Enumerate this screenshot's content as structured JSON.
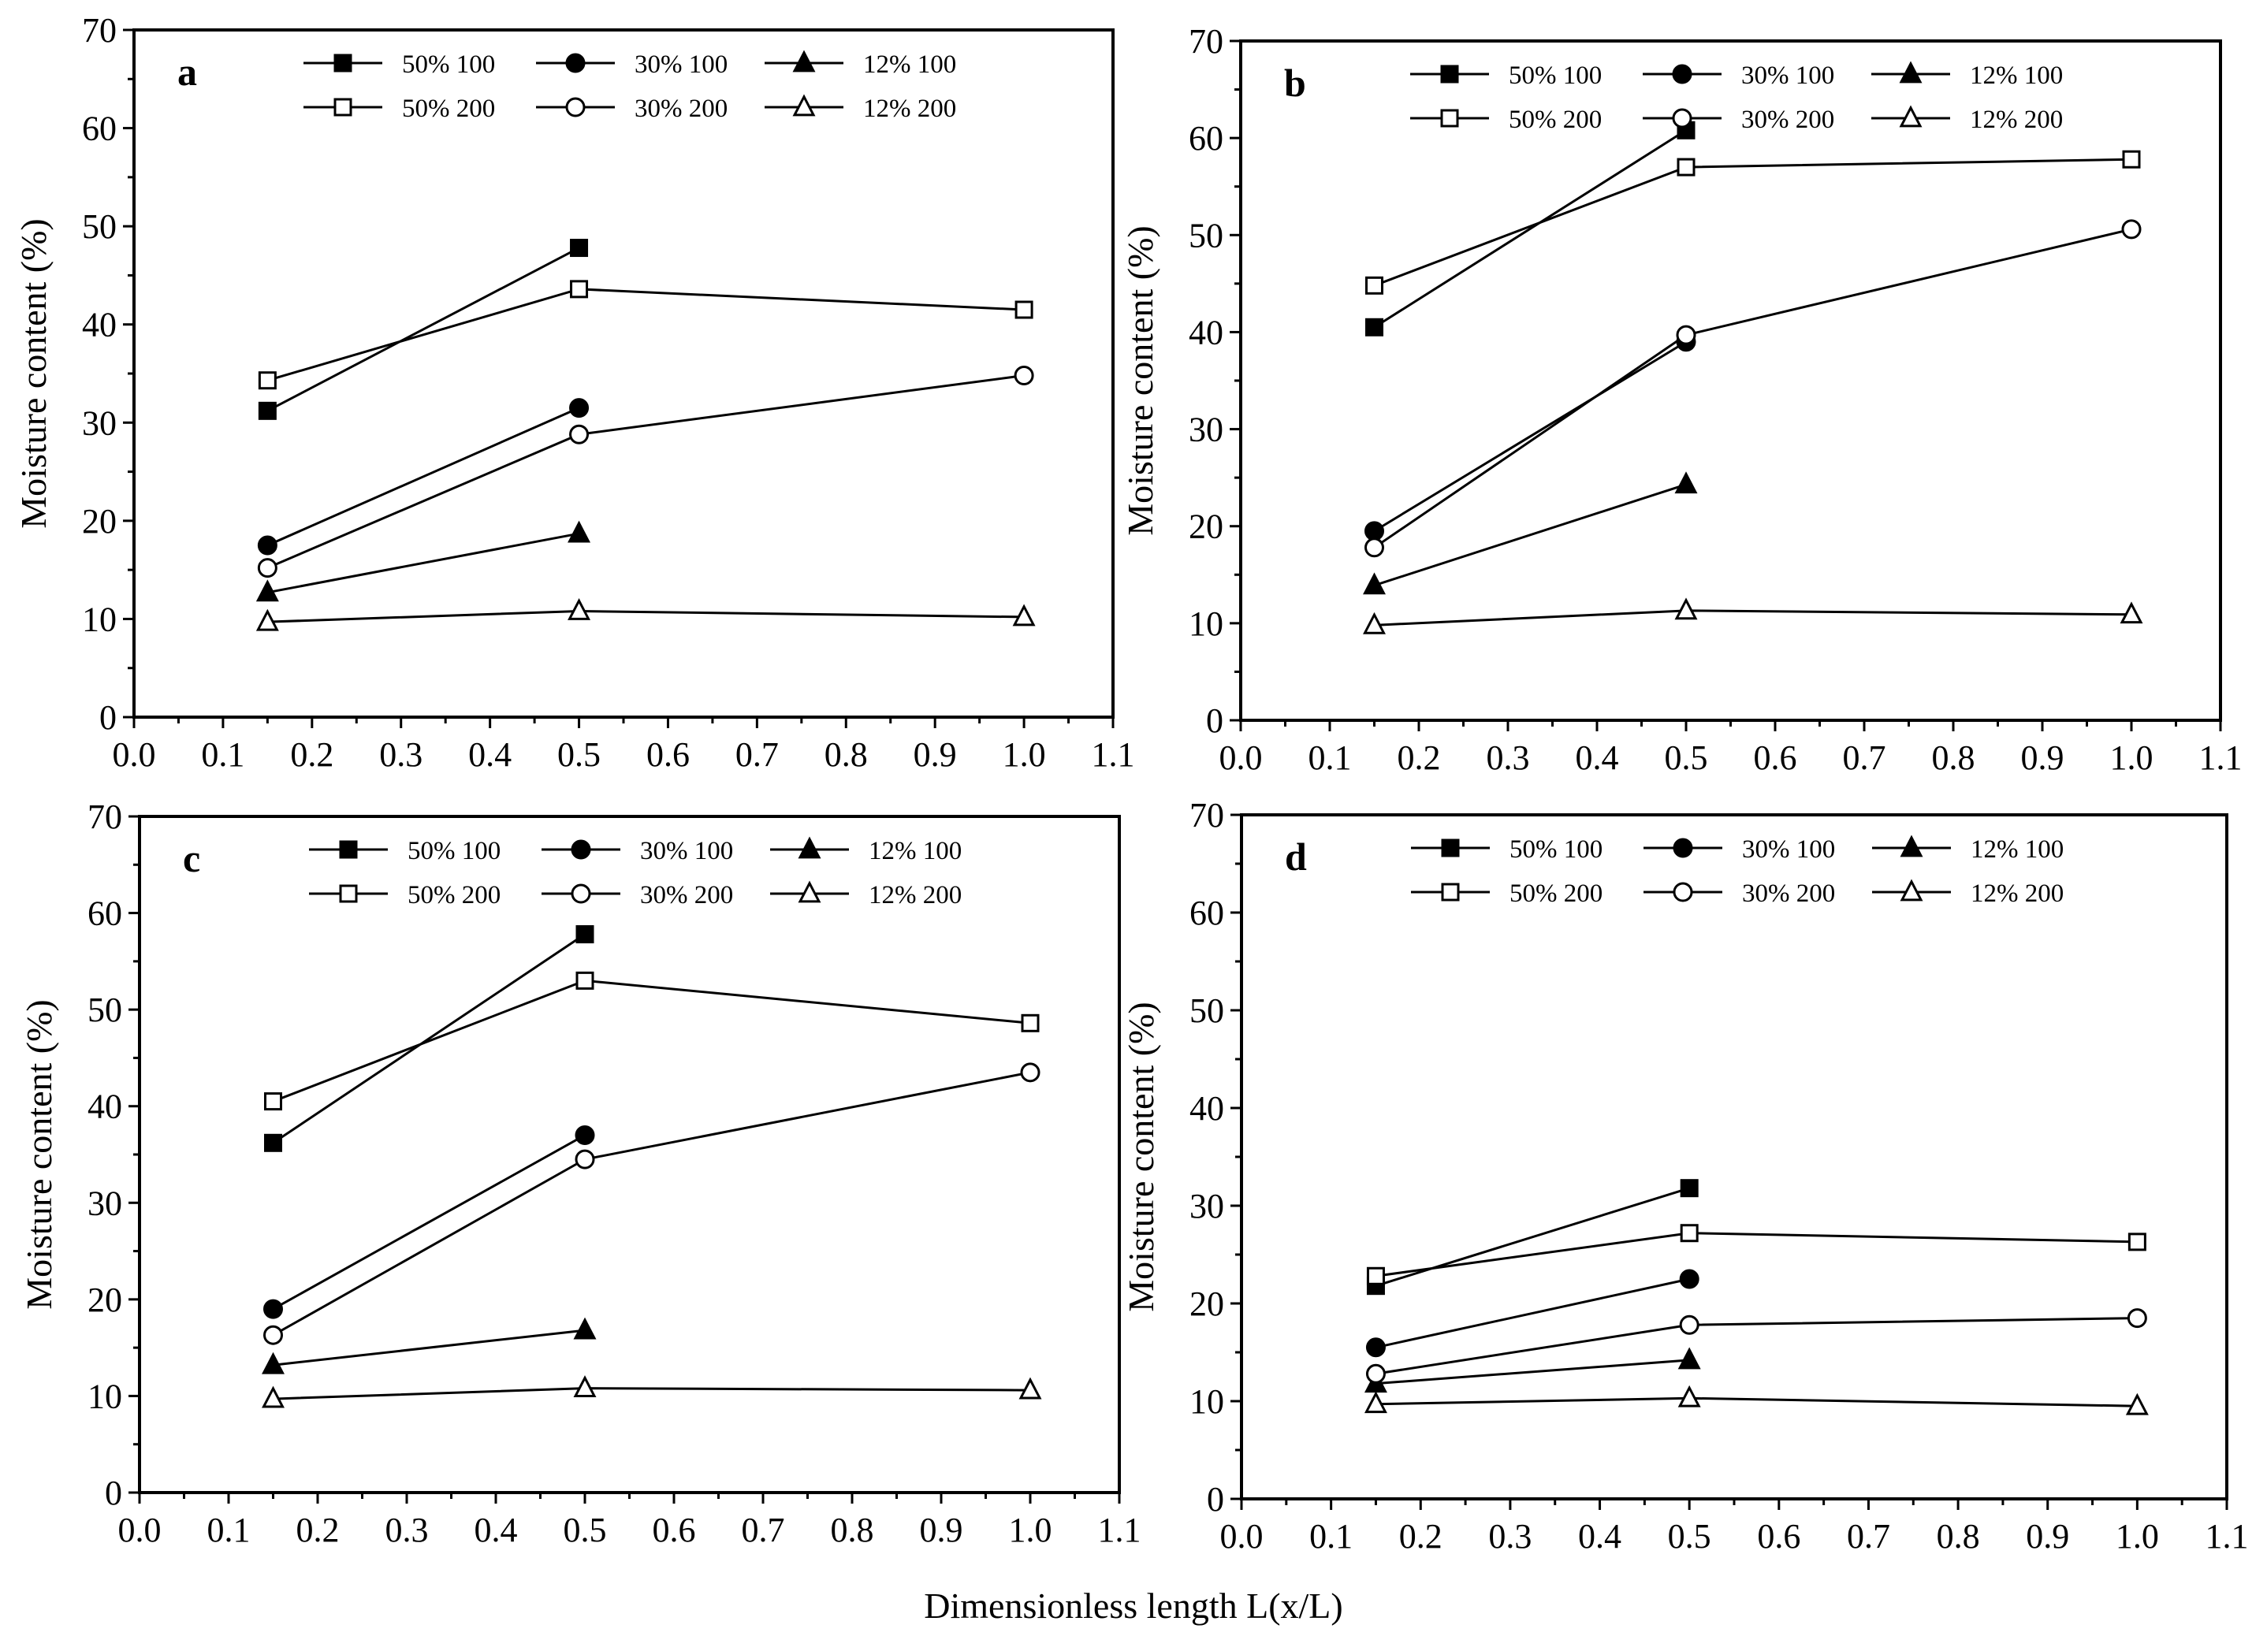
{
  "figure": {
    "xlabel": "Dimensionless length L(x/L)",
    "colors": {
      "line": "#000000",
      "fill": "#000000",
      "background": "#ffffff"
    }
  },
  "chart_data": [
    {
      "type": "line",
      "panel_label": "a",
      "ylabel": "Moisture content (%)",
      "xlim": [
        0.0,
        1.1
      ],
      "ylim": [
        0,
        70
      ],
      "xticks": [
        "0.0",
        "0.1",
        "0.2",
        "0.3",
        "0.4",
        "0.5",
        "0.6",
        "0.7",
        "0.8",
        "0.9",
        "1.0",
        "1.1"
      ],
      "yticks": [
        "0",
        "10",
        "20",
        "30",
        "40",
        "50",
        "60",
        "70"
      ],
      "legend": "top",
      "series": [
        {
          "name": "50% 100",
          "marker": "square-filled",
          "x": [
            0.15,
            0.5
          ],
          "y": [
            31.2,
            47.8
          ]
        },
        {
          "name": "30% 100",
          "marker": "circle-filled",
          "x": [
            0.15,
            0.5
          ],
          "y": [
            17.5,
            31.5
          ]
        },
        {
          "name": "12% 100",
          "marker": "triangle-filled",
          "x": [
            0.15,
            0.5
          ],
          "y": [
            12.7,
            18.7
          ]
        },
        {
          "name": "50% 200",
          "marker": "square-open",
          "x": [
            0.15,
            0.5,
            1.0
          ],
          "y": [
            34.3,
            43.6,
            41.5
          ]
        },
        {
          "name": "30% 200",
          "marker": "circle-open",
          "x": [
            0.15,
            0.5,
            1.0
          ],
          "y": [
            15.2,
            28.8,
            34.8
          ]
        },
        {
          "name": "12% 200",
          "marker": "triangle-open",
          "x": [
            0.15,
            0.5,
            1.0
          ],
          "y": [
            9.7,
            10.8,
            10.2
          ]
        }
      ]
    },
    {
      "type": "line",
      "panel_label": "b",
      "ylabel": "Moisture content (%)",
      "xlim": [
        0.0,
        1.1
      ],
      "ylim": [
        0,
        70
      ],
      "xticks": [
        "0.0",
        "0.1",
        "0.2",
        "0.3",
        "0.4",
        "0.5",
        "0.6",
        "0.7",
        "0.8",
        "0.9",
        "1.0",
        "1.1"
      ],
      "yticks": [
        "0",
        "10",
        "20",
        "30",
        "40",
        "50",
        "60",
        "70"
      ],
      "legend": "top",
      "series": [
        {
          "name": "50% 100",
          "marker": "square-filled",
          "x": [
            0.15,
            0.5
          ],
          "y": [
            40.5,
            60.8
          ]
        },
        {
          "name": "30% 100",
          "marker": "circle-filled",
          "x": [
            0.15,
            0.5
          ],
          "y": [
            19.5,
            39.0
          ]
        },
        {
          "name": "12% 100",
          "marker": "triangle-filled",
          "x": [
            0.15,
            0.5
          ],
          "y": [
            13.9,
            24.3
          ]
        },
        {
          "name": "50% 200",
          "marker": "square-open",
          "x": [
            0.15,
            0.5,
            1.0
          ],
          "y": [
            44.8,
            57.0,
            57.8
          ]
        },
        {
          "name": "30% 200",
          "marker": "circle-open",
          "x": [
            0.15,
            0.5,
            1.0
          ],
          "y": [
            17.8,
            39.7,
            50.6
          ]
        },
        {
          "name": "12% 200",
          "marker": "triangle-open",
          "x": [
            0.15,
            0.5,
            1.0
          ],
          "y": [
            9.8,
            11.3,
            10.9
          ]
        }
      ]
    },
    {
      "type": "line",
      "panel_label": "c",
      "ylabel": "Moisture content (%)",
      "xlim": [
        0.0,
        1.1
      ],
      "ylim": [
        0,
        70
      ],
      "xticks": [
        "0.0",
        "0.1",
        "0.2",
        "0.3",
        "0.4",
        "0.5",
        "0.6",
        "0.7",
        "0.8",
        "0.9",
        "1.0",
        "1.1"
      ],
      "yticks": [
        "0",
        "10",
        "20",
        "30",
        "40",
        "50",
        "60",
        "70"
      ],
      "legend": "top",
      "series": [
        {
          "name": "50% 100",
          "marker": "square-filled",
          "x": [
            0.15,
            0.5
          ],
          "y": [
            36.2,
            57.8
          ]
        },
        {
          "name": "30% 100",
          "marker": "circle-filled",
          "x": [
            0.15,
            0.5
          ],
          "y": [
            19.0,
            37.0
          ]
        },
        {
          "name": "12% 100",
          "marker": "triangle-filled",
          "x": [
            0.15,
            0.5
          ],
          "y": [
            13.2,
            16.8
          ]
        },
        {
          "name": "50% 200",
          "marker": "square-open",
          "x": [
            0.15,
            0.5,
            1.0
          ],
          "y": [
            40.5,
            53.0,
            48.6
          ]
        },
        {
          "name": "30% 200",
          "marker": "circle-open",
          "x": [
            0.15,
            0.5,
            1.0
          ],
          "y": [
            16.3,
            34.5,
            43.5
          ]
        },
        {
          "name": "12% 200",
          "marker": "triangle-open",
          "x": [
            0.15,
            0.5,
            1.0
          ],
          "y": [
            9.7,
            10.8,
            10.6
          ]
        }
      ]
    },
    {
      "type": "line",
      "panel_label": "d",
      "ylabel": "Moisture content (%)",
      "xlim": [
        0.0,
        1.1
      ],
      "ylim": [
        0,
        70
      ],
      "xticks": [
        "0.0",
        "0.1",
        "0.2",
        "0.3",
        "0.4",
        "0.5",
        "0.6",
        "0.7",
        "0.8",
        "0.9",
        "1.0",
        "1.1"
      ],
      "yticks": [
        "0",
        "10",
        "20",
        "30",
        "40",
        "50",
        "60",
        "70"
      ],
      "legend": "top",
      "series": [
        {
          "name": "50% 100",
          "marker": "square-filled",
          "x": [
            0.15,
            0.5
          ],
          "y": [
            21.8,
            31.8
          ]
        },
        {
          "name": "30% 100",
          "marker": "circle-filled",
          "x": [
            0.15,
            0.5
          ],
          "y": [
            15.5,
            22.5
          ]
        },
        {
          "name": "12% 100",
          "marker": "triangle-filled",
          "x": [
            0.15,
            0.5
          ],
          "y": [
            11.8,
            14.2
          ]
        },
        {
          "name": "50% 200",
          "marker": "square-open",
          "x": [
            0.15,
            0.5,
            1.0
          ],
          "y": [
            22.8,
            27.2,
            26.3
          ]
        },
        {
          "name": "30% 200",
          "marker": "circle-open",
          "x": [
            0.15,
            0.5,
            1.0
          ],
          "y": [
            12.8,
            17.8,
            18.5
          ]
        },
        {
          "name": "12% 200",
          "marker": "triangle-open",
          "x": [
            0.15,
            0.5,
            1.0
          ],
          "y": [
            9.7,
            10.3,
            9.5
          ]
        }
      ]
    }
  ]
}
